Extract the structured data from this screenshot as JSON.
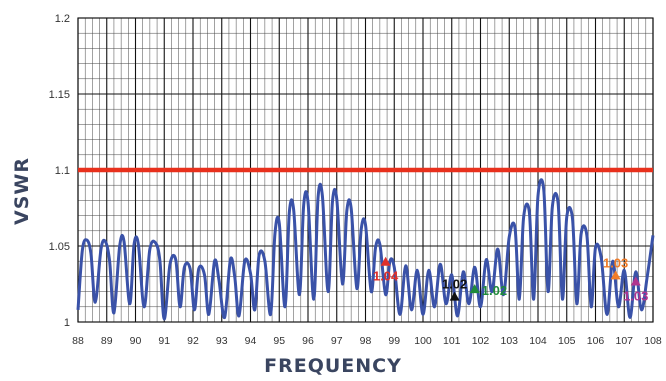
{
  "chart_data": {
    "type": "line",
    "title": "",
    "xlabel": "FREQUENCY",
    "ylabel": "VSWR",
    "xlim": [
      88,
      108
    ],
    "ylim": [
      1.0,
      1.2
    ],
    "xticks": [
      "88",
      "89",
      "90",
      "91",
      "92",
      "93",
      "94",
      "95",
      "96",
      "97",
      "98",
      "99",
      "100",
      "101",
      "102",
      "103",
      "104",
      "105",
      "106",
      "107",
      "108"
    ],
    "yticks": [
      "1",
      "1.05",
      "1.1",
      "1.15",
      "1.2"
    ],
    "grid": true,
    "threshold": {
      "value": 1.1,
      "color": "#e8301c"
    },
    "series": [
      {
        "color": "#3a52a8",
        "x": [
          88.0,
          88.15,
          88.3,
          88.45,
          88.6,
          88.8,
          88.95,
          89.1,
          89.25,
          89.45,
          89.6,
          89.8,
          89.95,
          90.1,
          90.3,
          90.5,
          90.7,
          90.85,
          91.0,
          91.2,
          91.4,
          91.55,
          91.7,
          91.9,
          92.05,
          92.2,
          92.4,
          92.55,
          92.75,
          92.9,
          93.1,
          93.3,
          93.45,
          93.6,
          93.8,
          94.0,
          94.15,
          94.3,
          94.5,
          94.7,
          94.85,
          95.0,
          95.2,
          95.35,
          95.5,
          95.7,
          95.85,
          96.0,
          96.2,
          96.35,
          96.5,
          96.7,
          96.85,
          97.0,
          97.2,
          97.35,
          97.5,
          97.7,
          97.85,
          98.0,
          98.2,
          98.35,
          98.5,
          98.7,
          98.85,
          99.0,
          99.2,
          99.4,
          99.6,
          99.8,
          100.0,
          100.2,
          100.4,
          100.6,
          100.8,
          101.0,
          101.2,
          101.4,
          101.6,
          101.8,
          102.0,
          102.2,
          102.4,
          102.6,
          102.8,
          103.0,
          103.2,
          103.35,
          103.5,
          103.7,
          103.85,
          104.0,
          104.2,
          104.35,
          104.5,
          104.7,
          104.85,
          105.0,
          105.2,
          105.35,
          105.5,
          105.7,
          105.85,
          106.0,
          106.2,
          106.4,
          106.6,
          106.8,
          107.0,
          107.2,
          107.4,
          107.6,
          107.8,
          108.0
        ],
        "y": [
          1.008,
          1.047,
          1.054,
          1.045,
          1.013,
          1.048,
          1.053,
          1.04,
          1.006,
          1.05,
          1.053,
          1.012,
          1.051,
          1.051,
          1.01,
          1.048,
          1.052,
          1.04,
          1.002,
          1.038,
          1.041,
          1.01,
          1.036,
          1.035,
          1.008,
          1.035,
          1.031,
          1.005,
          1.04,
          1.028,
          1.003,
          1.041,
          1.03,
          1.004,
          1.04,
          1.032,
          1.008,
          1.044,
          1.04,
          1.005,
          1.058,
          1.065,
          1.01,
          1.072,
          1.074,
          1.018,
          1.077,
          1.079,
          1.015,
          1.082,
          1.083,
          1.02,
          1.079,
          1.081,
          1.025,
          1.073,
          1.075,
          1.022,
          1.061,
          1.064,
          1.02,
          1.049,
          1.051,
          1.018,
          1.04,
          1.036,
          1.005,
          1.037,
          1.008,
          1.034,
          1.005,
          1.034,
          1.01,
          1.038,
          1.012,
          1.031,
          1.004,
          1.033,
          1.012,
          1.036,
          1.01,
          1.041,
          1.02,
          1.048,
          1.018,
          1.056,
          1.062,
          1.015,
          1.069,
          1.072,
          1.015,
          1.083,
          1.087,
          1.02,
          1.076,
          1.078,
          1.015,
          1.069,
          1.068,
          1.012,
          1.058,
          1.057,
          1.01,
          1.049,
          1.042,
          1.005,
          1.04,
          1.01,
          1.034,
          1.003,
          1.033,
          1.008,
          1.03,
          1.057
        ]
      }
    ],
    "markers": [
      {
        "x": 98.7,
        "y": 1.039,
        "label": "1.04",
        "color": "#e0302a",
        "label_pos": "below"
      },
      {
        "x": 101.1,
        "y": 1.016,
        "label": "1.02",
        "color": "#111111",
        "label_pos": "above"
      },
      {
        "x": 101.8,
        "y": 1.021,
        "label": "1.02",
        "color": "#1f8a3a",
        "label_pos": "right"
      },
      {
        "x": 106.7,
        "y": 1.03,
        "label": "1.03",
        "color": "#f07c28",
        "label_pos": "above"
      },
      {
        "x": 107.4,
        "y": 1.026,
        "label": "1.03",
        "color": "#b0358f",
        "label_pos": "below"
      }
    ]
  }
}
